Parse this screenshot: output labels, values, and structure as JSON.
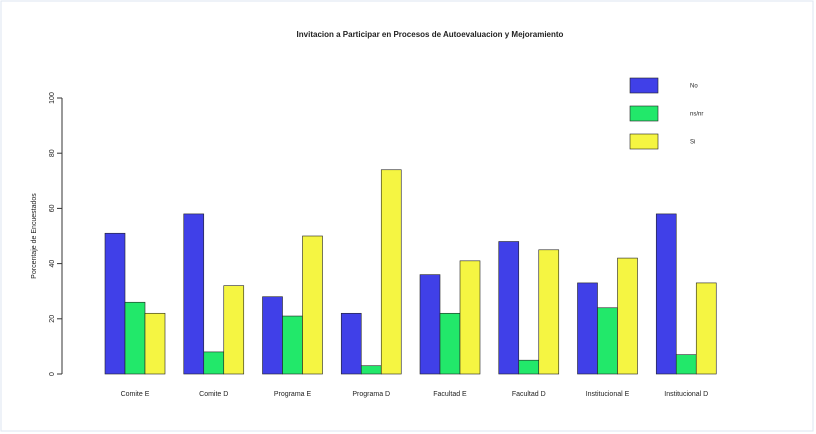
{
  "chart_data": {
    "type": "bar",
    "title": "Invitacion a Participar en Procesos de Autoevaluacion y Mejoramiento",
    "ylabel": "Porcentaje de Encuestados",
    "categories": [
      "Comite E",
      "Comite D",
      "Programa E",
      "Programa D",
      "Facultad E",
      "Facultad D",
      "Institucional E",
      "Institucional D"
    ],
    "series": [
      {
        "name": "No",
        "color": "#4040e8",
        "values": [
          51,
          58,
          28,
          22,
          36,
          48,
          33,
          58
        ]
      },
      {
        "name": "ns/nr",
        "color": "#22e86a",
        "values": [
          26,
          8,
          21,
          3,
          22,
          5,
          24,
          7
        ]
      },
      {
        "name": "Si",
        "color": "#f5f542",
        "values": [
          22,
          32,
          50,
          74,
          41,
          45,
          42,
          33
        ]
      }
    ],
    "ylim": [
      0,
      100
    ],
    "yticks": [
      0,
      20,
      40,
      60,
      80,
      100
    ],
    "legend": "top-right"
  }
}
